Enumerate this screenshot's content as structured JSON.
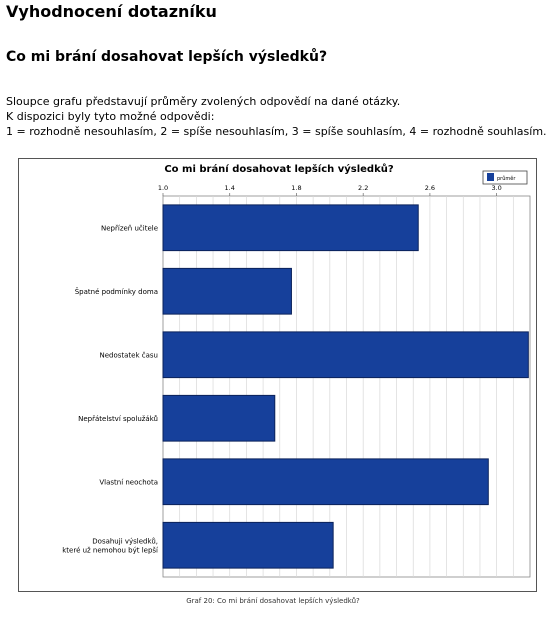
{
  "page": {
    "title": "Vyhodnocení dotazníku",
    "section_title": "Co mi brání dosahovat lepších výsledků?",
    "intro_lines": [
      "Sloupce grafu představují průměry zvolených odpovědí na dané otázky.",
      "K dispozici byly tyto možné odpovědi:",
      "1 = rozhodně nesouhlasím, 2 = spíše nesouhlasím, 3 = spíše souhlasím, 4 = rozhodně souhlasím."
    ],
    "caption": "Graf 20: Co mi brání dosahovat lepších výsledků?"
  },
  "chart_data": {
    "type": "bar",
    "orientation": "horizontal",
    "title": "Co mi brání dosahovat lepších výsledků?",
    "categories": [
      [
        "Nepřízeň učitele"
      ],
      [
        "Špatné podmínky doma"
      ],
      [
        "Nedostatek času"
      ],
      [
        "Nepřátelství spolužáků"
      ],
      [
        "Vlastní neochota"
      ],
      [
        "Dosahuji výsledků,",
        "které už nemohou být lepší"
      ]
    ],
    "series": [
      {
        "name": "průměr",
        "values": [
          2.53,
          1.77,
          3.19,
          1.67,
          2.95,
          2.02
        ]
      }
    ],
    "xlim": [
      1.0,
      3.2
    ],
    "xticks": [
      1.0,
      1.4,
      1.8,
      2.2,
      2.6,
      3.0
    ],
    "grid": true,
    "legend_position": "top-right",
    "colors": {
      "bar": "#16409b",
      "bar_edge": "#0b225a",
      "grid": "#d8d8d8",
      "plot_bg": "#ffffff"
    }
  }
}
